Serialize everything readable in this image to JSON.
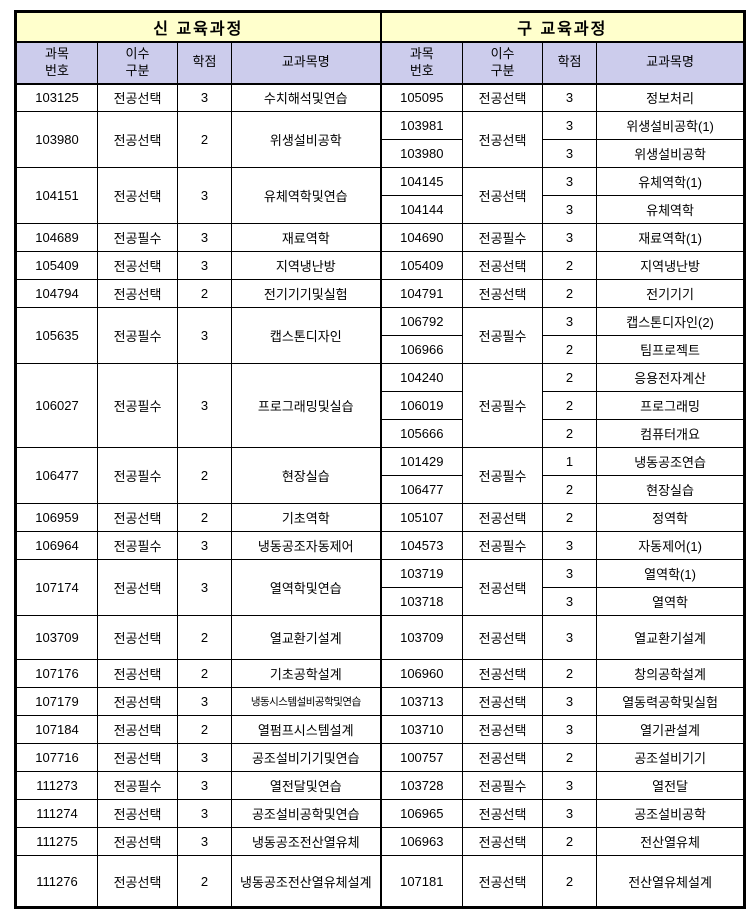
{
  "colors": {
    "title_bg": "#FFFFCC",
    "header_bg": "#CCCCEC",
    "border": "#000000"
  },
  "table": {
    "groups": [
      {
        "title": "신  교육과정"
      },
      {
        "title": "구  교육과정"
      }
    ],
    "columns": [
      "과목\n번호",
      "이수\n구분",
      "학점",
      "교과목명"
    ],
    "rows": [
      {
        "left": {
          "no": "103125",
          "type": "전공선택",
          "credit": "3",
          "name": "수치해석및연습",
          "span": 1
        },
        "right": {
          "no": "105095",
          "type": "전공선택",
          "typeSpan": 1,
          "credit": "3",
          "name": "정보처리"
        }
      },
      {
        "left": {
          "no": "103980",
          "type": "전공선택",
          "credit": "2",
          "name": "위생설비공학",
          "span": 2
        },
        "right": {
          "no": "103981",
          "type": "전공선택",
          "typeSpan": 2,
          "credit": "3",
          "name": "위생설비공학(1)"
        }
      },
      {
        "right": {
          "no": "103980",
          "credit": "3",
          "name": "위생설비공학"
        }
      },
      {
        "left": {
          "no": "104151",
          "type": "전공선택",
          "credit": "3",
          "name": "유체역학및연습",
          "span": 2
        },
        "right": {
          "no": "104145",
          "type": "전공선택",
          "typeSpan": 2,
          "credit": "3",
          "name": "유체역학(1)"
        }
      },
      {
        "right": {
          "no": "104144",
          "credit": "3",
          "name": "유체역학"
        }
      },
      {
        "left": {
          "no": "104689",
          "type": "전공필수",
          "credit": "3",
          "name": "재료역학",
          "span": 1
        },
        "right": {
          "no": "104690",
          "type": "전공필수",
          "typeSpan": 1,
          "credit": "3",
          "name": "재료역학(1)"
        }
      },
      {
        "left": {
          "no": "105409",
          "type": "전공선택",
          "credit": "3",
          "name": "지역냉난방",
          "span": 1
        },
        "right": {
          "no": "105409",
          "type": "전공선택",
          "typeSpan": 1,
          "credit": "2",
          "name": "지역냉난방"
        }
      },
      {
        "left": {
          "no": "104794",
          "type": "전공선택",
          "credit": "2",
          "name": "전기기기및실험",
          "span": 1
        },
        "right": {
          "no": "104791",
          "type": "전공선택",
          "typeSpan": 1,
          "credit": "2",
          "name": "전기기기"
        }
      },
      {
        "left": {
          "no": "105635",
          "type": "전공필수",
          "credit": "3",
          "name": "캡스톤디자인",
          "span": 2
        },
        "right": {
          "no": "106792",
          "type": "전공필수",
          "typeSpan": 2,
          "credit": "3",
          "name": "캡스톤디자인(2)"
        }
      },
      {
        "right": {
          "no": "106966",
          "credit": "2",
          "name": "팀프로젝트"
        }
      },
      {
        "left": {
          "no": "106027",
          "type": "전공필수",
          "credit": "3",
          "name": "프로그래밍및실습",
          "span": 3
        },
        "right": {
          "no": "104240",
          "type": "전공필수",
          "typeSpan": 3,
          "credit": "2",
          "name": "응용전자계산"
        }
      },
      {
        "right": {
          "no": "106019",
          "credit": "2",
          "name": "프로그래밍"
        }
      },
      {
        "right": {
          "no": "105666",
          "credit": "2",
          "name": "컴퓨터개요"
        }
      },
      {
        "left": {
          "no": "106477",
          "type": "전공필수",
          "credit": "2",
          "name": "현장실습",
          "span": 2
        },
        "right": {
          "no": "101429",
          "type": "전공필수",
          "typeSpan": 2,
          "credit": "1",
          "name": "냉동공조연습"
        }
      },
      {
        "right": {
          "no": "106477",
          "credit": "2",
          "name": "현장실습"
        }
      },
      {
        "left": {
          "no": "106959",
          "type": "전공선택",
          "credit": "2",
          "name": "기초역학",
          "span": 1
        },
        "right": {
          "no": "105107",
          "type": "전공선택",
          "typeSpan": 1,
          "credit": "2",
          "name": "정역학"
        }
      },
      {
        "left": {
          "no": "106964",
          "type": "전공필수",
          "credit": "3",
          "name": "냉동공조자동제어",
          "span": 1
        },
        "right": {
          "no": "104573",
          "type": "전공필수",
          "typeSpan": 1,
          "credit": "3",
          "name": "자동제어(1)"
        }
      },
      {
        "left": {
          "no": "107174",
          "type": "전공선택",
          "credit": "3",
          "name": "열역학및연습",
          "span": 2
        },
        "right": {
          "no": "103719",
          "type": "전공선택",
          "typeSpan": 2,
          "credit": "3",
          "name": "열역학(1)"
        }
      },
      {
        "right": {
          "no": "103718",
          "credit": "3",
          "name": "열역학"
        }
      },
      {
        "left": {
          "no": "103709",
          "type": "전공선택",
          "credit": "2",
          "name": "열교환기설계",
          "span": 1
        },
        "right": {
          "no": "103709",
          "type": "전공선택",
          "typeSpan": 1,
          "credit": "3",
          "name": "열교환기설계"
        }
      },
      {
        "left": {
          "no": "107176",
          "type": "전공선택",
          "credit": "2",
          "name": "기초공학설계",
          "span": 1
        },
        "right": {
          "no": "106960",
          "type": "전공선택",
          "typeSpan": 1,
          "credit": "2",
          "name": "창의공학설계"
        }
      },
      {
        "left": {
          "no": "107179",
          "type": "전공선택",
          "credit": "3",
          "name": "냉동시스템설비공학및연습",
          "span": 1
        },
        "right": {
          "no": "103713",
          "type": "전공선택",
          "typeSpan": 1,
          "credit": "3",
          "name": "열동력공학및실험"
        }
      },
      {
        "left": {
          "no": "107184",
          "type": "전공선택",
          "credit": "2",
          "name": "열펌프시스템설계",
          "span": 1
        },
        "right": {
          "no": "103710",
          "type": "전공선택",
          "typeSpan": 1,
          "credit": "3",
          "name": "열기관설계"
        }
      },
      {
        "left": {
          "no": "107716",
          "type": "전공선택",
          "credit": "3",
          "name": "공조설비기기및연습",
          "span": 1
        },
        "right": {
          "no": "100757",
          "type": "전공선택",
          "typeSpan": 1,
          "credit": "2",
          "name": "공조설비기기"
        }
      },
      {
        "left": {
          "no": "111273",
          "type": "전공필수",
          "credit": "3",
          "name": "열전달및연습",
          "span": 1
        },
        "right": {
          "no": "103728",
          "type": "전공필수",
          "typeSpan": 1,
          "credit": "3",
          "name": "열전달"
        }
      },
      {
        "left": {
          "no": "111274",
          "type": "전공선택",
          "credit": "3",
          "name": "공조설비공학및연습",
          "span": 1
        },
        "right": {
          "no": "106965",
          "type": "전공선택",
          "typeSpan": 1,
          "credit": "3",
          "name": "공조설비공학"
        }
      },
      {
        "left": {
          "no": "111275",
          "type": "전공선택",
          "credit": "3",
          "name": "냉동공조전산열유체",
          "span": 1
        },
        "right": {
          "no": "106963",
          "type": "전공선택",
          "typeSpan": 1,
          "credit": "2",
          "name": "전산열유체"
        }
      },
      {
        "left": {
          "no": "111276",
          "type": "전공선택",
          "credit": "2",
          "name": "냉동공조전산열유체설계",
          "span": 1
        },
        "right": {
          "no": "107181",
          "type": "전공선택",
          "typeSpan": 1,
          "credit": "2",
          "name": "전산열유체설계"
        }
      }
    ]
  }
}
